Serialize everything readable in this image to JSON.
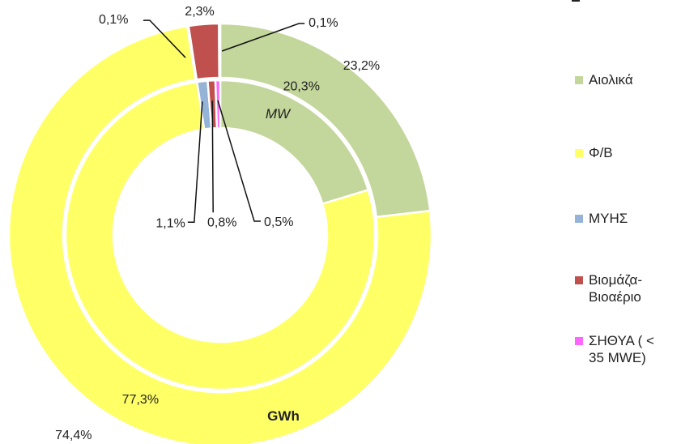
{
  "chart_data": {
    "type": "pie",
    "variant": "double-donut",
    "series": [
      {
        "name": "GWh",
        "ring": "outer",
        "values": [
          23.2,
          74.4,
          0.1,
          2.3,
          0.1
        ],
        "labels": [
          "23,2%",
          "74,4%",
          "0,1%",
          "2,3%",
          "0,1%"
        ]
      },
      {
        "name": "MW",
        "ring": "inner",
        "values": [
          20.3,
          77.3,
          1.1,
          0.8,
          0.5
        ],
        "labels": [
          "20,3%",
          "77,3%",
          "1,1%",
          "0,8%",
          "0,5%"
        ]
      }
    ],
    "categories": [
      "Αιολικά",
      "Φ/Β",
      "ΜΥΗΣ",
      "Βιομάζα-\nΒιοαέριο",
      "ΣΗΘΥΑ ( <\n35 MWE)"
    ],
    "colors": [
      "#c3d69b",
      "#ffff66",
      "#95b3d7",
      "#c0504d",
      "#ff66ff"
    ],
    "legend_position": "right"
  }
}
